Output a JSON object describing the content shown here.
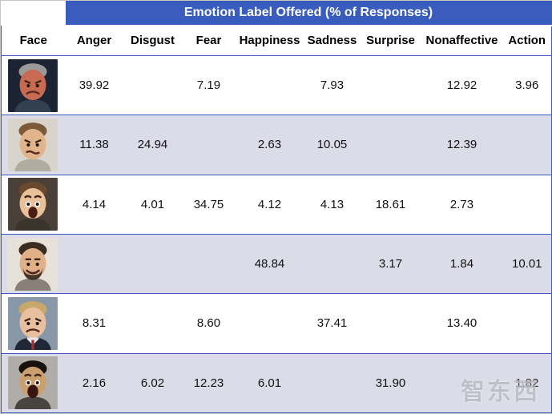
{
  "colors": {
    "header_blue": "#3a5dbd",
    "row_alt": "#dcdce9",
    "border": "#3a5dbd",
    "watermark": "#b9b9c0"
  },
  "watermark": {
    "text": "智东西"
  },
  "chart_data": {
    "type": "table",
    "title": "Emotion Label Offered (% of Responses)",
    "row_header": "Face",
    "columns": [
      "Anger",
      "Disgust",
      "Fear",
      "Happiness",
      "Sadness",
      "Surprise",
      "Nonaffective",
      "Action"
    ],
    "rows": [
      {
        "face": "angry-red-faced-man",
        "expression": "anger",
        "values": [
          "39.92",
          "",
          "7.19",
          "",
          "7.93",
          "",
          "12.92",
          "3.96"
        ]
      },
      {
        "face": "disgusted-man",
        "expression": "disgust",
        "values": [
          "11.38",
          "24.94",
          "",
          "2.63",
          "10.05",
          "",
          "12.39",
          ""
        ]
      },
      {
        "face": "fearful-shocked-person",
        "expression": "fear",
        "values": [
          "4.14",
          "4.01",
          "34.75",
          "4.12",
          "4.13",
          "18.61",
          "2.73",
          ""
        ]
      },
      {
        "face": "smiling-bearded-man",
        "expression": "happiness",
        "values": [
          "",
          "",
          "",
          "48.84",
          "",
          "3.17",
          "1.84",
          "10.01"
        ]
      },
      {
        "face": "sad-man-in-suit",
        "expression": "sadness",
        "values": [
          "8.31",
          "",
          "8.60",
          "",
          "37.41",
          "",
          "13.40",
          ""
        ]
      },
      {
        "face": "surprised-man",
        "expression": "surprise",
        "values": [
          "2.16",
          "6.02",
          "12.23",
          "6.01",
          "",
          "31.90",
          "",
          "1.82"
        ]
      }
    ]
  }
}
